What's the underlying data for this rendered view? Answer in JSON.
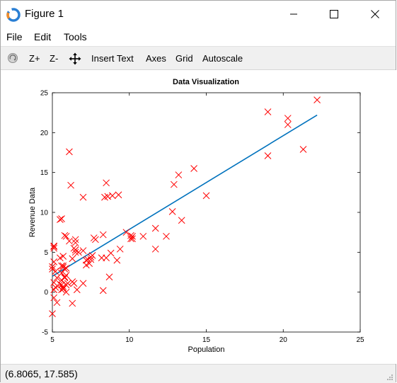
{
  "window": {
    "title": "Figure 1",
    "controls": {
      "minimize": "minimize",
      "maximize": "maximize",
      "close": "close"
    }
  },
  "menu": {
    "items": [
      {
        "label": "File"
      },
      {
        "label": "Edit"
      },
      {
        "label": "Tools"
      }
    ]
  },
  "toolbar": {
    "rotate_icon": "rotate-icon",
    "zoom_in_label": "Z+",
    "zoom_out_label": "Z-",
    "pan_icon": "pan-icon",
    "insert_text_label": "Insert Text",
    "axes_label": "Axes",
    "grid_label": "Grid",
    "autoscale_label": "Autoscale"
  },
  "status": {
    "coordinates": "(6.8065, 17.585)"
  },
  "chart_data": {
    "type": "scatter",
    "title": "Data Visualization",
    "xlabel": "Population",
    "ylabel": "Revenue Data",
    "xlim": [
      5,
      25
    ],
    "ylim": [
      -5,
      25
    ],
    "xticks": [
      5,
      10,
      15,
      20,
      25
    ],
    "yticks": [
      -5,
      0,
      5,
      10,
      15,
      20,
      25
    ],
    "grid": false,
    "marker": "x",
    "marker_color": "#ff0000",
    "line_color": "#0072bd",
    "series": [
      {
        "type": "scatter",
        "points": [
          [
            6.1,
            17.6
          ],
          [
            5.5,
            9.1
          ],
          [
            8.5,
            13.7
          ],
          [
            7.0,
            11.9
          ],
          [
            5.9,
            7.0
          ],
          [
            8.4,
            11.9
          ],
          [
            5.6,
            3.3
          ],
          [
            8.6,
            12.0
          ],
          [
            6.5,
            6.6
          ],
          [
            5.1,
            3.8
          ],
          [
            5.7,
            3.3
          ],
          [
            14.2,
            15.5
          ],
          [
            5.7,
            3.1
          ],
          [
            6.2,
            13.4
          ],
          [
            5.1,
            5.5
          ],
          [
            5.7,
            0.7
          ],
          [
            10.1,
            7.1
          ],
          [
            5.5,
            4.3
          ],
          [
            6.4,
            5.5
          ],
          [
            7.7,
            6.8
          ],
          [
            6.6,
            0.3
          ],
          [
            7.5,
            4.4
          ],
          [
            20.3,
            21.8
          ],
          [
            5.6,
            0.3
          ],
          [
            8.9,
            12.1
          ],
          [
            12.9,
            13.5
          ],
          [
            10.9,
            7.0
          ],
          [
            5.8,
            1.9
          ],
          [
            6.5,
            5.3
          ],
          [
            5.2,
            2.6
          ],
          [
            5.0,
            2.9
          ],
          [
            6.5,
            5.3
          ],
          [
            5.3,
            1.8
          ],
          [
            5.5,
            1.0
          ],
          [
            5.8,
            2.9
          ],
          [
            9.3,
            12.2
          ],
          [
            8.3,
            0.2
          ],
          [
            5.9,
            2.1
          ],
          [
            7.5,
            4.1
          ],
          [
            11.7,
            8.0
          ],
          [
            5.8,
            7.1
          ],
          [
            5.1,
            -0.7
          ],
          [
            6.7,
            5.0
          ],
          [
            5.1,
            5.8
          ],
          [
            5.1,
            5.7
          ],
          [
            6.1,
            6.4
          ],
          [
            7.0,
            5.2
          ],
          [
            5.2,
            0.6
          ],
          [
            7.0,
            1.1
          ],
          [
            5.9,
            0.0
          ],
          [
            8.3,
            7.2
          ],
          [
            7.4,
            3.6
          ],
          [
            5.6,
            0.9
          ],
          [
            5.0,
            -2.7
          ],
          [
            6.3,
            1.3
          ],
          [
            8.8,
            4.9
          ],
          [
            8.2,
            4.3
          ],
          [
            7.2,
            3.4
          ],
          [
            5.6,
            2.4
          ],
          [
            6.5,
            6.2
          ],
          [
            6.3,
            -1.4
          ],
          [
            5.6,
            1.5
          ],
          [
            11.7,
            5.4
          ],
          [
            7.8,
            6.6
          ],
          [
            6.5,
            5.0
          ],
          [
            5.7,
            4.5
          ],
          [
            7.2,
            4.0
          ],
          [
            6.0,
            1.1
          ],
          [
            5.8,
            1.8
          ],
          [
            8.7,
            1.9
          ],
          [
            12.8,
            10.1
          ],
          [
            5.9,
            0.9
          ],
          [
            22.2,
            24.1
          ],
          [
            21.3,
            17.9
          ],
          [
            19.0,
            22.6
          ],
          [
            19.0,
            17.1
          ],
          [
            5.0,
            3.2
          ],
          [
            5.6,
            9.2
          ],
          [
            10.2,
            6.7
          ],
          [
            5.1,
            1.2
          ],
          [
            5.7,
            0.4
          ],
          [
            5.1,
            0.3
          ],
          [
            5.3,
            -1.3
          ],
          [
            10.2,
            7.0
          ],
          [
            13.4,
            9.0
          ],
          [
            6.3,
            4.2
          ],
          [
            8.5,
            4.3
          ],
          [
            20.3,
            21.0
          ],
          [
            15.0,
            12.1
          ],
          [
            9.4,
            5.4
          ],
          [
            5.9,
            3.0
          ],
          [
            7.3,
            4.1
          ],
          [
            12.4,
            7.0
          ],
          [
            5.7,
            0.5
          ],
          [
            6.4,
            1.1
          ],
          [
            10.1,
            6.7
          ],
          [
            9.8,
            7.5
          ],
          [
            7.6,
            4.6
          ],
          [
            13.2,
            14.7
          ],
          [
            9.2,
            4.0
          ]
        ]
      },
      {
        "type": "line",
        "points": [
          [
            5.0,
            2.0
          ],
          [
            22.2,
            22.2
          ]
        ]
      }
    ]
  }
}
